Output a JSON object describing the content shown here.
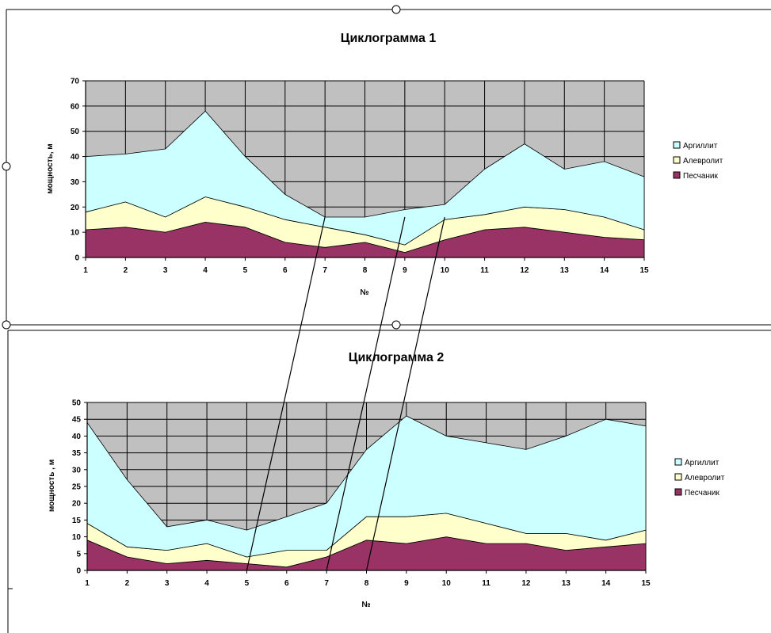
{
  "chart_data": [
    {
      "type": "area",
      "stacked": true,
      "title": "Циклограмма 1",
      "xlabel": "№",
      "ylabel": "мощность, м",
      "x": [
        "1",
        "2",
        "3",
        "4",
        "5",
        "6",
        "7",
        "8",
        "9",
        "10",
        "11",
        "12",
        "13",
        "14",
        "15"
      ],
      "ylim": [
        0,
        70
      ],
      "yticks": [
        "0",
        "10",
        "20",
        "30",
        "40",
        "50",
        "60",
        "70"
      ],
      "grid": true,
      "legend": "right",
      "series": [
        {
          "name": "Песчаник",
          "color": "#993366",
          "values": [
            11,
            12,
            10,
            14,
            12,
            6,
            4,
            6,
            2,
            7,
            11,
            12,
            10,
            8,
            7
          ]
        },
        {
          "name": "Алевролит",
          "color": "#ffffcc",
          "values": [
            7,
            10,
            6,
            10,
            8,
            9,
            8,
            3,
            3,
            8,
            6,
            8,
            9,
            8,
            4
          ]
        },
        {
          "name": "Аргиллит",
          "color": "#ccffff",
          "values": [
            22,
            19,
            27,
            34,
            20,
            10,
            4,
            7,
            14,
            6,
            18,
            25,
            16,
            22,
            21
          ]
        }
      ]
    },
    {
      "type": "area",
      "stacked": true,
      "title": "Циклограмма 2",
      "xlabel": "№",
      "ylabel": "мощность , м",
      "x": [
        "1",
        "2",
        "3",
        "4",
        "5",
        "6",
        "7",
        "8",
        "9",
        "10",
        "11",
        "12",
        "13",
        "14",
        "15"
      ],
      "ylim": [
        0,
        50
      ],
      "yticks": [
        "0",
        "5",
        "10",
        "15",
        "20",
        "25",
        "30",
        "35",
        "40",
        "45",
        "50"
      ],
      "grid": true,
      "legend": "right",
      "series": [
        {
          "name": "Песчаник",
          "color": "#993366",
          "values": [
            9,
            4,
            2,
            3,
            2,
            1,
            4,
            9,
            8,
            10,
            8,
            8,
            6,
            7,
            8
          ]
        },
        {
          "name": "Алевролит",
          "color": "#ffffcc",
          "values": [
            5,
            3,
            4,
            5,
            2,
            5,
            2,
            7,
            8,
            7,
            6,
            3,
            5,
            2,
            4
          ]
        },
        {
          "name": "Аргиллит",
          "color": "#ccffff",
          "values": [
            30,
            20,
            7,
            7,
            8,
            10,
            14,
            20,
            30,
            23,
            24,
            25,
            29,
            36,
            31
          ]
        }
      ]
    }
  ],
  "correlation_lines": [
    {
      "from": 7,
      "to": 5
    },
    {
      "from": 9,
      "to": 7
    },
    {
      "from": 10,
      "to": 8
    }
  ],
  "colors": {
    "plot_background": "#c0c0c0",
    "gridline": "#000000"
  }
}
